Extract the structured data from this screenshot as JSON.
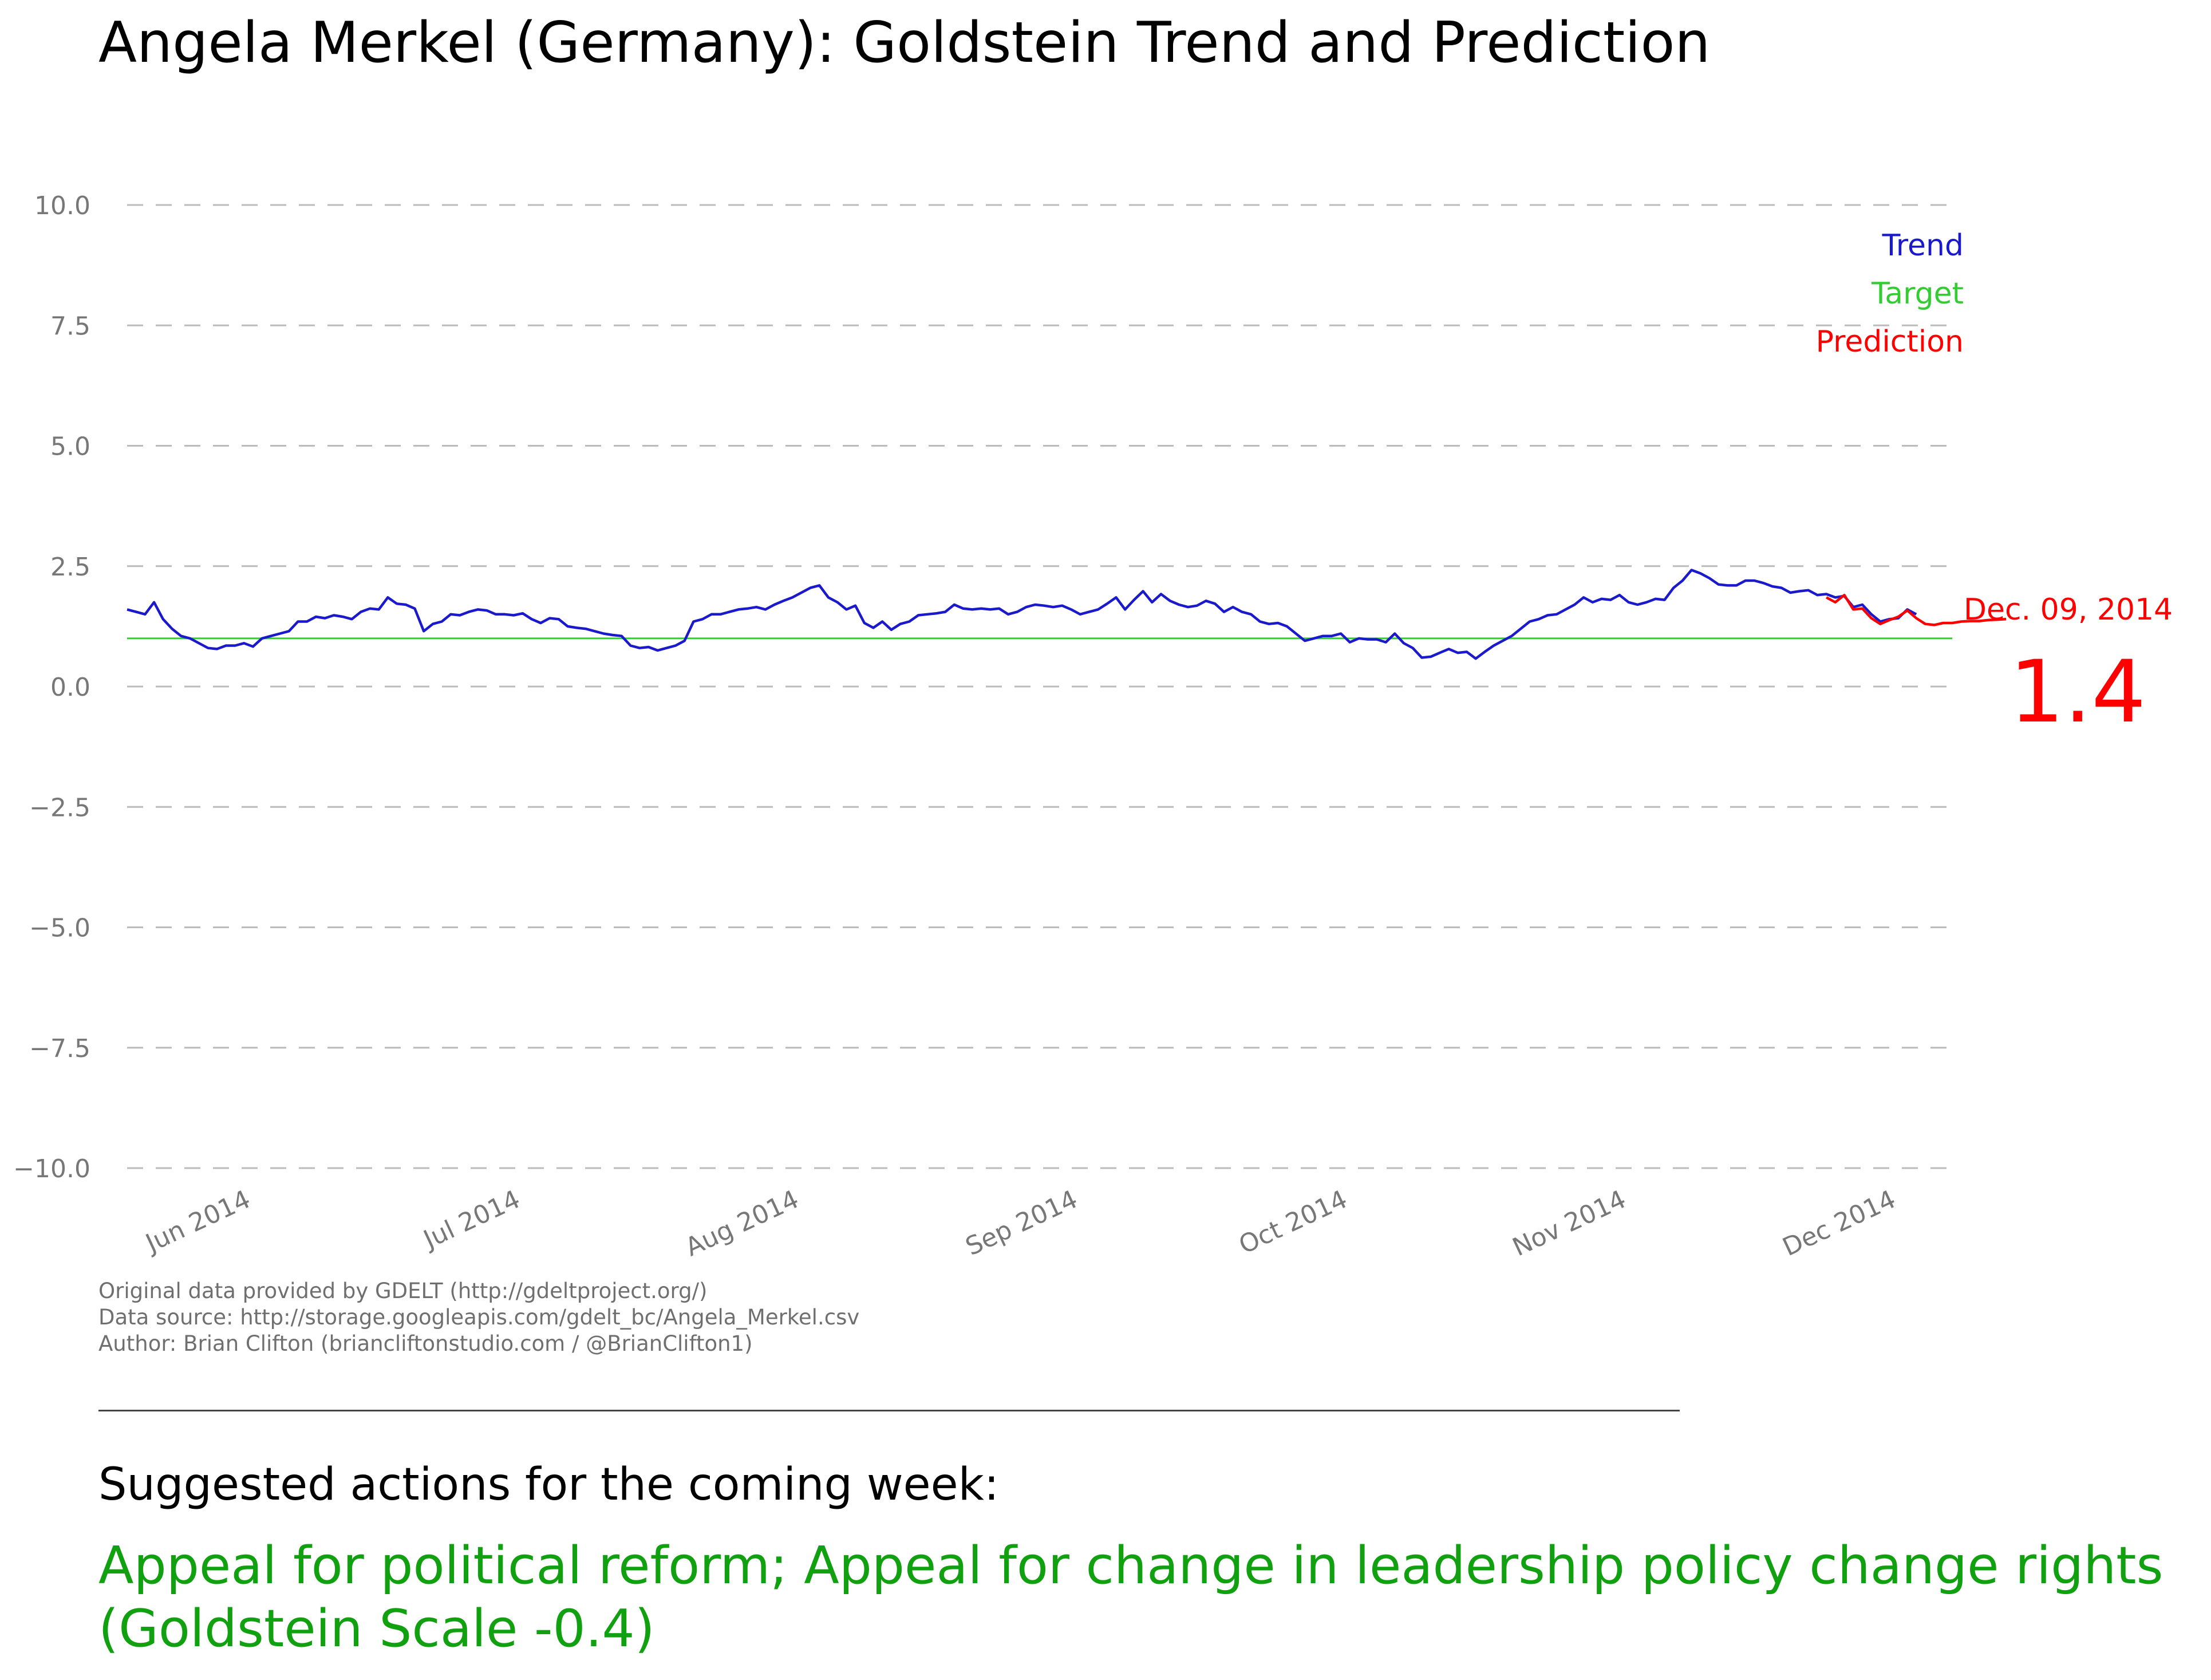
{
  "page": {
    "title": "Angela Merkel (Germany): Goldstein Trend and Prediction",
    "credits": [
      "Original data provided by GDELT (http://gdeltproject.org/)",
      "Data source: http://storage.googleapis.com/gdelt_bc/Angela_Merkel.csv",
      "Author: Brian Clifton (briancliftonstudio.com / @BrianClifton1)"
    ],
    "actions_heading": "Suggested actions for the coming week:",
    "action_text": "Appeal for political reform; Appeal for change in leadership policy change rights (Goldstein Scale -0.4)"
  },
  "chart_data": {
    "type": "line",
    "title": "Angela Merkel (Germany): Goldstein Trend and Prediction",
    "xlabel": "",
    "ylabel": "",
    "x_range": [
      "2014-05-20",
      "2014-12-09"
    ],
    "ylim": [
      -10,
      10
    ],
    "y_ticks": [
      10,
      7.5,
      5,
      2.5,
      0,
      -2.5,
      -5,
      -7.5,
      -10
    ],
    "y_tick_labels": [
      "10.0",
      "7.5",
      "5.0",
      "2.5",
      "0.0",
      "−2.5",
      "−5.0",
      "−7.5",
      "−10.0"
    ],
    "x_ticks": [
      "2014-06-01",
      "2014-07-01",
      "2014-08-01",
      "2014-09-01",
      "2014-10-01",
      "2014-11-01",
      "2014-12-01"
    ],
    "x_tick_labels": [
      "Jun 2014",
      "Jul 2014",
      "Aug 2014",
      "Sep 2014",
      "Oct 2014",
      "Nov 2014",
      "Dec 2014"
    ],
    "grid": true,
    "legend_position": "top-right",
    "colors": {
      "trend": "#1a1acc",
      "target": "#33cc33",
      "prediction": "#ff0000",
      "grid": "#bbbbbb",
      "tick_label": "#777777"
    },
    "series": [
      {
        "name": "Trend",
        "color": "#1a1acc",
        "points": [
          [
            "2014-05-20",
            1.6
          ],
          [
            "2014-05-21",
            1.55
          ],
          [
            "2014-05-22",
            1.5
          ],
          [
            "2014-05-23",
            1.75
          ],
          [
            "2014-05-24",
            1.4
          ],
          [
            "2014-05-25",
            1.2
          ],
          [
            "2014-05-26",
            1.05
          ],
          [
            "2014-05-27",
            1.0
          ],
          [
            "2014-05-28",
            0.9
          ],
          [
            "2014-05-29",
            0.8
          ],
          [
            "2014-05-30",
            0.78
          ],
          [
            "2014-05-31",
            0.85
          ],
          [
            "2014-06-01",
            0.85
          ],
          [
            "2014-06-02",
            0.9
          ],
          [
            "2014-06-03",
            0.83
          ],
          [
            "2014-06-04",
            1.0
          ],
          [
            "2014-06-05",
            1.05
          ],
          [
            "2014-06-06",
            1.1
          ],
          [
            "2014-06-07",
            1.15
          ],
          [
            "2014-06-08",
            1.35
          ],
          [
            "2014-06-09",
            1.35
          ],
          [
            "2014-06-10",
            1.45
          ],
          [
            "2014-06-11",
            1.42
          ],
          [
            "2014-06-12",
            1.48
          ],
          [
            "2014-06-13",
            1.45
          ],
          [
            "2014-06-14",
            1.4
          ],
          [
            "2014-06-15",
            1.55
          ],
          [
            "2014-06-16",
            1.62
          ],
          [
            "2014-06-17",
            1.6
          ],
          [
            "2014-06-18",
            1.85
          ],
          [
            "2014-06-19",
            1.72
          ],
          [
            "2014-06-20",
            1.7
          ],
          [
            "2014-06-21",
            1.62
          ],
          [
            "2014-06-22",
            1.15
          ],
          [
            "2014-06-23",
            1.3
          ],
          [
            "2014-06-24",
            1.35
          ],
          [
            "2014-06-25",
            1.5
          ],
          [
            "2014-06-26",
            1.48
          ],
          [
            "2014-06-27",
            1.55
          ],
          [
            "2014-06-28",
            1.6
          ],
          [
            "2014-06-29",
            1.58
          ],
          [
            "2014-06-30",
            1.5
          ],
          [
            "2014-07-01",
            1.5
          ],
          [
            "2014-07-02",
            1.48
          ],
          [
            "2014-07-03",
            1.52
          ],
          [
            "2014-07-04",
            1.4
          ],
          [
            "2014-07-05",
            1.32
          ],
          [
            "2014-07-06",
            1.42
          ],
          [
            "2014-07-07",
            1.4
          ],
          [
            "2014-07-08",
            1.25
          ],
          [
            "2014-07-09",
            1.22
          ],
          [
            "2014-07-10",
            1.2
          ],
          [
            "2014-07-11",
            1.15
          ],
          [
            "2014-07-12",
            1.1
          ],
          [
            "2014-07-13",
            1.07
          ],
          [
            "2014-07-14",
            1.05
          ],
          [
            "2014-07-15",
            0.85
          ],
          [
            "2014-07-16",
            0.8
          ],
          [
            "2014-07-17",
            0.82
          ],
          [
            "2014-07-18",
            0.75
          ],
          [
            "2014-07-19",
            0.8
          ],
          [
            "2014-07-20",
            0.85
          ],
          [
            "2014-07-21",
            0.95
          ],
          [
            "2014-07-22",
            1.35
          ],
          [
            "2014-07-23",
            1.4
          ],
          [
            "2014-07-24",
            1.5
          ],
          [
            "2014-07-25",
            1.5
          ],
          [
            "2014-07-26",
            1.55
          ],
          [
            "2014-07-27",
            1.6
          ],
          [
            "2014-07-28",
            1.62
          ],
          [
            "2014-07-29",
            1.65
          ],
          [
            "2014-07-30",
            1.6
          ],
          [
            "2014-07-31",
            1.7
          ],
          [
            "2014-08-01",
            1.78
          ],
          [
            "2014-08-02",
            1.85
          ],
          [
            "2014-08-03",
            1.95
          ],
          [
            "2014-08-04",
            2.05
          ],
          [
            "2014-08-05",
            2.1
          ],
          [
            "2014-08-06",
            1.85
          ],
          [
            "2014-08-07",
            1.75
          ],
          [
            "2014-08-08",
            1.6
          ],
          [
            "2014-08-09",
            1.68
          ],
          [
            "2014-08-10",
            1.32
          ],
          [
            "2014-08-11",
            1.22
          ],
          [
            "2014-08-12",
            1.35
          ],
          [
            "2014-08-13",
            1.18
          ],
          [
            "2014-08-14",
            1.3
          ],
          [
            "2014-08-15",
            1.35
          ],
          [
            "2014-08-16",
            1.48
          ],
          [
            "2014-08-17",
            1.5
          ],
          [
            "2014-08-18",
            1.52
          ],
          [
            "2014-08-19",
            1.55
          ],
          [
            "2014-08-20",
            1.7
          ],
          [
            "2014-08-21",
            1.62
          ],
          [
            "2014-08-22",
            1.6
          ],
          [
            "2014-08-23",
            1.62
          ],
          [
            "2014-08-24",
            1.6
          ],
          [
            "2014-08-25",
            1.62
          ],
          [
            "2014-08-26",
            1.5
          ],
          [
            "2014-08-27",
            1.55
          ],
          [
            "2014-08-28",
            1.65
          ],
          [
            "2014-08-29",
            1.7
          ],
          [
            "2014-08-30",
            1.68
          ],
          [
            "2014-08-31",
            1.65
          ],
          [
            "2014-09-01",
            1.68
          ],
          [
            "2014-09-02",
            1.6
          ],
          [
            "2014-09-03",
            1.5
          ],
          [
            "2014-09-04",
            1.55
          ],
          [
            "2014-09-05",
            1.6
          ],
          [
            "2014-09-06",
            1.72
          ],
          [
            "2014-09-07",
            1.85
          ],
          [
            "2014-09-08",
            1.6
          ],
          [
            "2014-09-09",
            1.8
          ],
          [
            "2014-09-10",
            1.98
          ],
          [
            "2014-09-11",
            1.75
          ],
          [
            "2014-09-12",
            1.92
          ],
          [
            "2014-09-13",
            1.78
          ],
          [
            "2014-09-14",
            1.7
          ],
          [
            "2014-09-15",
            1.65
          ],
          [
            "2014-09-16",
            1.68
          ],
          [
            "2014-09-17",
            1.78
          ],
          [
            "2014-09-18",
            1.72
          ],
          [
            "2014-09-19",
            1.55
          ],
          [
            "2014-09-20",
            1.65
          ],
          [
            "2014-09-21",
            1.55
          ],
          [
            "2014-09-22",
            1.5
          ],
          [
            "2014-09-23",
            1.35
          ],
          [
            "2014-09-24",
            1.3
          ],
          [
            "2014-09-25",
            1.32
          ],
          [
            "2014-09-26",
            1.25
          ],
          [
            "2014-09-27",
            1.1
          ],
          [
            "2014-09-28",
            0.95
          ],
          [
            "2014-09-29",
            1.0
          ],
          [
            "2014-09-30",
            1.05
          ],
          [
            "2014-10-01",
            1.05
          ],
          [
            "2014-10-02",
            1.1
          ],
          [
            "2014-10-03",
            0.92
          ],
          [
            "2014-10-04",
            1.0
          ],
          [
            "2014-10-05",
            0.98
          ],
          [
            "2014-10-06",
            0.98
          ],
          [
            "2014-10-07",
            0.92
          ],
          [
            "2014-10-08",
            1.1
          ],
          [
            "2014-10-09",
            0.9
          ],
          [
            "2014-10-10",
            0.8
          ],
          [
            "2014-10-11",
            0.6
          ],
          [
            "2014-10-12",
            0.62
          ],
          [
            "2014-10-13",
            0.7
          ],
          [
            "2014-10-14",
            0.78
          ],
          [
            "2014-10-15",
            0.7
          ],
          [
            "2014-10-16",
            0.72
          ],
          [
            "2014-10-17",
            0.58
          ],
          [
            "2014-10-18",
            0.72
          ],
          [
            "2014-10-19",
            0.85
          ],
          [
            "2014-10-20",
            0.95
          ],
          [
            "2014-10-21",
            1.05
          ],
          [
            "2014-10-22",
            1.2
          ],
          [
            "2014-10-23",
            1.35
          ],
          [
            "2014-10-24",
            1.4
          ],
          [
            "2014-10-25",
            1.48
          ],
          [
            "2014-10-26",
            1.5
          ],
          [
            "2014-10-27",
            1.6
          ],
          [
            "2014-10-28",
            1.7
          ],
          [
            "2014-10-29",
            1.85
          ],
          [
            "2014-10-30",
            1.75
          ],
          [
            "2014-10-31",
            1.82
          ],
          [
            "2014-11-01",
            1.8
          ],
          [
            "2014-11-02",
            1.9
          ],
          [
            "2014-11-03",
            1.75
          ],
          [
            "2014-11-04",
            1.7
          ],
          [
            "2014-11-05",
            1.75
          ],
          [
            "2014-11-06",
            1.82
          ],
          [
            "2014-11-07",
            1.8
          ],
          [
            "2014-11-08",
            2.05
          ],
          [
            "2014-11-09",
            2.2
          ],
          [
            "2014-11-10",
            2.42
          ],
          [
            "2014-11-11",
            2.35
          ],
          [
            "2014-11-12",
            2.25
          ],
          [
            "2014-11-13",
            2.12
          ],
          [
            "2014-11-14",
            2.1
          ],
          [
            "2014-11-15",
            2.1
          ],
          [
            "2014-11-16",
            2.2
          ],
          [
            "2014-11-17",
            2.2
          ],
          [
            "2014-11-18",
            2.15
          ],
          [
            "2014-11-19",
            2.08
          ],
          [
            "2014-11-20",
            2.05
          ],
          [
            "2014-11-21",
            1.95
          ],
          [
            "2014-11-22",
            1.98
          ],
          [
            "2014-11-23",
            2.0
          ],
          [
            "2014-11-24",
            1.9
          ],
          [
            "2014-11-25",
            1.92
          ],
          [
            "2014-11-26",
            1.85
          ],
          [
            "2014-11-27",
            1.88
          ],
          [
            "2014-11-28",
            1.65
          ],
          [
            "2014-11-29",
            1.7
          ],
          [
            "2014-11-30",
            1.5
          ],
          [
            "2014-12-01",
            1.35
          ],
          [
            "2014-12-02",
            1.4
          ],
          [
            "2014-12-03",
            1.42
          ],
          [
            "2014-12-04",
            1.6
          ],
          [
            "2014-12-05",
            1.5
          ]
        ]
      },
      {
        "name": "Target",
        "color": "#33cc33",
        "points": [
          [
            "2014-05-20",
            1.0
          ],
          [
            "2014-12-09",
            1.0
          ]
        ]
      },
      {
        "name": "Prediction",
        "color": "#ff0000",
        "points": [
          [
            "2014-11-25",
            1.85
          ],
          [
            "2014-11-26",
            1.75
          ],
          [
            "2014-11-27",
            1.9
          ],
          [
            "2014-11-28",
            1.6
          ],
          [
            "2014-11-29",
            1.62
          ],
          [
            "2014-11-30",
            1.42
          ],
          [
            "2014-12-01",
            1.3
          ],
          [
            "2014-12-02",
            1.38
          ],
          [
            "2014-12-03",
            1.45
          ],
          [
            "2014-12-04",
            1.58
          ],
          [
            "2014-12-05",
            1.42
          ],
          [
            "2014-12-06",
            1.3
          ],
          [
            "2014-12-07",
            1.28
          ],
          [
            "2014-12-08",
            1.32
          ],
          [
            "2014-12-09",
            1.32
          ],
          [
            "2014-12-10",
            1.35
          ],
          [
            "2014-12-11",
            1.36
          ],
          [
            "2014-12-12",
            1.36
          ],
          [
            "2014-12-13",
            1.38
          ],
          [
            "2014-12-14",
            1.39
          ],
          [
            "2014-12-15",
            1.4
          ]
        ]
      }
    ],
    "annotation": {
      "label": "Dec. 09, 2014",
      "value": "1.4",
      "color": "#ff0000"
    }
  }
}
